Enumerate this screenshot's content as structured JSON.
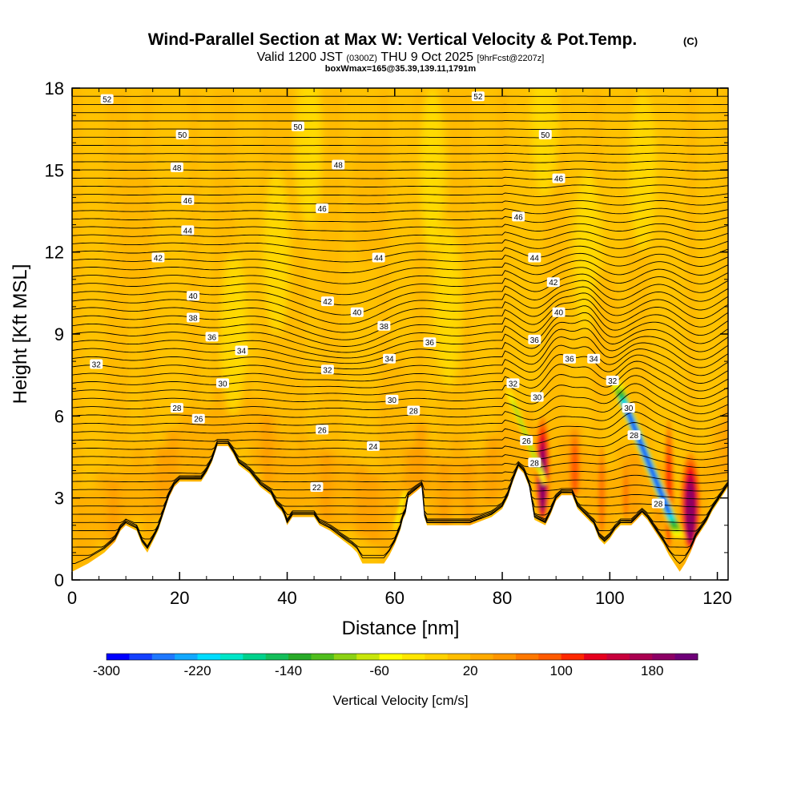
{
  "chart_data": {
    "type": "cross-section",
    "title": "Wind-Parallel Section at Max W: Vertical Velocity & Pot.Temp.",
    "title_mark": "(C)",
    "subtitle_prefix": "Valid 1200 JST",
    "subtitle_utc": "(0300Z)",
    "subtitle_date": "THU 9 Oct 2025",
    "subtitle_fcst": "[9hrFcst@2207z]",
    "box_info": "boxWmax=165@35.39,139.11,1791m",
    "xlabel": "Distance [nm]",
    "ylabel": "Height [Kft MSL]",
    "xlim": [
      0,
      122
    ],
    "ylim": [
      0,
      18
    ],
    "x_ticks": [
      {
        "v": 0,
        "label": "0"
      },
      {
        "v": 20,
        "label": "20"
      },
      {
        "v": 40,
        "label": "40"
      },
      {
        "v": 60,
        "label": "60"
      },
      {
        "v": 80,
        "label": "80"
      },
      {
        "v": 100,
        "label": "100"
      },
      {
        "v": 120,
        "label": "120"
      }
    ],
    "y_ticks": [
      {
        "v": 0,
        "label": "0"
      },
      {
        "v": 3,
        "label": "3"
      },
      {
        "v": 6,
        "label": "6"
      },
      {
        "v": 9,
        "label": "9"
      },
      {
        "v": 12,
        "label": "12"
      },
      {
        "v": 15,
        "label": "15"
      },
      {
        "v": 18,
        "label": "18"
      }
    ],
    "colorbar": {
      "label": "Vertical Velocity [cm/s]",
      "range": [
        -300,
        220
      ],
      "step": 20,
      "tick_labels": [
        {
          "v": -300,
          "label": "-300"
        },
        {
          "v": -220,
          "label": "-220"
        },
        {
          "v": -140,
          "label": "-140"
        },
        {
          "v": -60,
          "label": "-60"
        },
        {
          "v": 20,
          "label": "20"
        },
        {
          "v": 100,
          "label": "100"
        },
        {
          "v": 180,
          "label": "180"
        }
      ],
      "colors": [
        "#0000ff",
        "#1440ff",
        "#1f78ff",
        "#12a8ff",
        "#00dcff",
        "#00e6c8",
        "#00d28c",
        "#14be5a",
        "#28aa28",
        "#50be1e",
        "#8cd214",
        "#c8e60a",
        "#ffff00",
        "#ffe600",
        "#ffd200",
        "#ffbe00",
        "#ffaa00",
        "#ff9600",
        "#ff7800",
        "#ff5a00",
        "#ff2800",
        "#e6001e",
        "#c8003c",
        "#aa0050",
        "#8c0064",
        "#6e0078"
      ]
    },
    "terrain_profile": [
      [
        0,
        0.3
      ],
      [
        3,
        0.6
      ],
      [
        6,
        1
      ],
      [
        8,
        1.4
      ],
      [
        9,
        1.8
      ],
      [
        10,
        2
      ],
      [
        12,
        1.8
      ],
      [
        13,
        1.3
      ],
      [
        14,
        1
      ],
      [
        15,
        1.4
      ],
      [
        16,
        1.8
      ],
      [
        17,
        2.4
      ],
      [
        18,
        3
      ],
      [
        19,
        3.4
      ],
      [
        20,
        3.6
      ],
      [
        24,
        3.6
      ],
      [
        25,
        3.9
      ],
      [
        26,
        4.3
      ],
      [
        27,
        4.9
      ],
      [
        29,
        4.9
      ],
      [
        30,
        4.6
      ],
      [
        31,
        4.2
      ],
      [
        33,
        3.9
      ],
      [
        35,
        3.4
      ],
      [
        37,
        3.1
      ],
      [
        38,
        2.7
      ],
      [
        39,
        2.5
      ],
      [
        39.5,
        2.3
      ],
      [
        40,
        2
      ],
      [
        41,
        2.3
      ],
      [
        45,
        2.3
      ],
      [
        46,
        2
      ],
      [
        48,
        1.8
      ],
      [
        50,
        1.5
      ],
      [
        52,
        1.2
      ],
      [
        53,
        1
      ],
      [
        54,
        0.6
      ],
      [
        58,
        0.6
      ],
      [
        59,
        0.9
      ],
      [
        60,
        1.3
      ],
      [
        61,
        1.8
      ],
      [
        61.5,
        2.2
      ],
      [
        62,
        2.4
      ],
      [
        62.5,
        3
      ],
      [
        65,
        3.4
      ],
      [
        65.5,
        2.3
      ],
      [
        66,
        2
      ],
      [
        74,
        2
      ],
      [
        78,
        2.3
      ],
      [
        80,
        2.6
      ],
      [
        81,
        3
      ],
      [
        82,
        3.6
      ],
      [
        83,
        4.1
      ],
      [
        84,
        3.9
      ],
      [
        85,
        3.4
      ],
      [
        86,
        2.2
      ],
      [
        87,
        2.1
      ],
      [
        88,
        2
      ],
      [
        89,
        2.4
      ],
      [
        90,
        2.9
      ],
      [
        91,
        3.1
      ],
      [
        93,
        3.1
      ],
      [
        94,
        2.6
      ],
      [
        95,
        2.4
      ],
      [
        96,
        2.2
      ],
      [
        97,
        2
      ],
      [
        98,
        1.5
      ],
      [
        99,
        1.3
      ],
      [
        100,
        1.5
      ],
      [
        101,
        1.8
      ],
      [
        102,
        2
      ],
      [
        104,
        2
      ],
      [
        105,
        2.2
      ],
      [
        106,
        2.4
      ],
      [
        107,
        2.2
      ],
      [
        108,
        1.9
      ],
      [
        109,
        1.6
      ],
      [
        110,
        1.3
      ],
      [
        111,
        0.9
      ],
      [
        112,
        0.6
      ],
      [
        113,
        0.3
      ],
      [
        114,
        0.6
      ],
      [
        115,
        1
      ],
      [
        116,
        1.5
      ],
      [
        117,
        1.8
      ],
      [
        118,
        2.1
      ],
      [
        119,
        2.5
      ],
      [
        120,
        2.8
      ],
      [
        121,
        3.1
      ],
      [
        122,
        3.4
      ]
    ],
    "theta_contours": [
      {
        "v": 22,
        "lx": 45.5,
        "ly": 3.4
      },
      {
        "v": 24,
        "lx": 56,
        "ly": 4.9
      },
      {
        "v": 26,
        "lx": 23.5,
        "ly": 5.9
      },
      {
        "v": 26,
        "lx": 46.5,
        "ly": 5.5
      },
      {
        "v": 26,
        "lx": 84.5,
        "ly": 5.1
      },
      {
        "v": 28,
        "lx": 19.5,
        "ly": 6.3
      },
      {
        "v": 28,
        "lx": 63.5,
        "ly": 6.2
      },
      {
        "v": 28,
        "lx": 86,
        "ly": 4.3
      },
      {
        "v": 28,
        "lx": 109,
        "ly": 2.8
      },
      {
        "v": 28,
        "lx": 104.5,
        "ly": 5.3
      },
      {
        "v": 30,
        "lx": 28,
        "ly": 7.2
      },
      {
        "v": 30,
        "lx": 59.5,
        "ly": 6.6
      },
      {
        "v": 30,
        "lx": 86.5,
        "ly": 6.7
      },
      {
        "v": 30,
        "lx": 103.5,
        "ly": 6.3
      },
      {
        "v": 32,
        "lx": 4.5,
        "ly": 7.9
      },
      {
        "v": 32,
        "lx": 47.5,
        "ly": 7.7
      },
      {
        "v": 32,
        "lx": 82,
        "ly": 7.2
      },
      {
        "v": 32,
        "lx": 100.5,
        "ly": 7.3
      },
      {
        "v": 34,
        "lx": 31.5,
        "ly": 8.4
      },
      {
        "v": 34,
        "lx": 59,
        "ly": 8.1
      },
      {
        "v": 34,
        "lx": 97,
        "ly": 8.1
      },
      {
        "v": 36,
        "lx": 26,
        "ly": 8.9
      },
      {
        "v": 36,
        "lx": 66.5,
        "ly": 8.7
      },
      {
        "v": 36,
        "lx": 86,
        "ly": 8.8
      },
      {
        "v": 36,
        "lx": 92.5,
        "ly": 8.1
      },
      {
        "v": 38,
        "lx": 22.5,
        "ly": 9.6
      },
      {
        "v": 38,
        "lx": 58,
        "ly": 9.3
      },
      {
        "v": 40,
        "lx": 22.5,
        "ly": 10.4
      },
      {
        "v": 40,
        "lx": 53,
        "ly": 9.8
      },
      {
        "v": 40,
        "lx": 90.5,
        "ly": 9.8
      },
      {
        "v": 42,
        "lx": 16,
        "ly": 11.8
      },
      {
        "v": 42,
        "lx": 47.5,
        "ly": 10.2
      },
      {
        "v": 42,
        "lx": 89.5,
        "ly": 10.9
      },
      {
        "v": 44,
        "lx": 21.5,
        "ly": 12.8
      },
      {
        "v": 44,
        "lx": 57,
        "ly": 11.8
      },
      {
        "v": 44,
        "lx": 86,
        "ly": 11.8
      },
      {
        "v": 46,
        "lx": 21.5,
        "ly": 13.9
      },
      {
        "v": 46,
        "lx": 46.5,
        "ly": 13.6
      },
      {
        "v": 46,
        "lx": 83,
        "ly": 13.3
      },
      {
        "v": 46,
        "lx": 90.5,
        "ly": 14.7
      },
      {
        "v": 48,
        "lx": 19.5,
        "ly": 15.1
      },
      {
        "v": 48,
        "lx": 49.5,
        "ly": 15.2
      },
      {
        "v": 50,
        "lx": 20.5,
        "ly": 16.3
      },
      {
        "v": 50,
        "lx": 42,
        "ly": 16.6
      },
      {
        "v": 50,
        "lx": 88,
        "ly": 16.3
      },
      {
        "v": 52,
        "lx": 6.5,
        "ly": 17.6
      },
      {
        "v": 52,
        "lx": 75.5,
        "ly": 17.7
      }
    ],
    "updrafts": [
      {
        "cx": 87.5,
        "top": 6.2,
        "w": 3,
        "peak": 185
      },
      {
        "cx": 115,
        "top": 4.8,
        "w": 4,
        "peak": 190
      },
      {
        "cx": 93.5,
        "top": 5.8,
        "w": 2.5,
        "peak": 90
      },
      {
        "cx": 98.5,
        "top": 5.5,
        "w": 2,
        "peak": 70
      },
      {
        "cx": 111,
        "top": 6.3,
        "w": 2,
        "peak": 110
      },
      {
        "cx": 103,
        "top": 4.8,
        "w": 2,
        "peak": 60
      }
    ],
    "downdrafts": [
      {
        "x0": 81,
        "y0": 7,
        "x1": 88,
        "y1": 3.5,
        "w": 1.2,
        "peak": -110
      },
      {
        "x0": 101,
        "y0": 7.3,
        "x1": 113,
        "y1": 1.5,
        "w": 2.2,
        "peak": -290
      },
      {
        "x0": 62,
        "y0": 3.3,
        "x1": 60,
        "y1": 1.8,
        "w": 1,
        "peak": -60
      }
    ]
  }
}
